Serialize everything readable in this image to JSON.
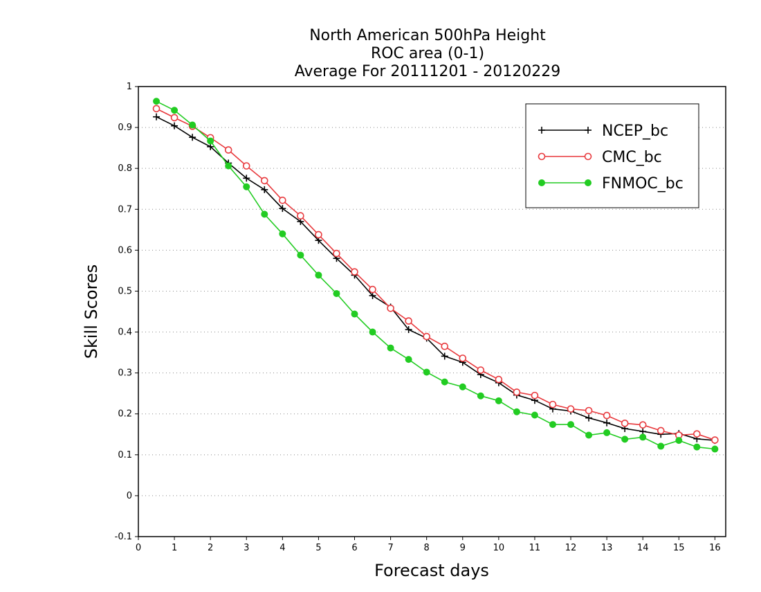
{
  "chart_data": {
    "type": "line",
    "title_lines": [
      "North American 500hPa Height",
      "ROC area (0-1)",
      "Average For 20111201 - 20120229"
    ],
    "xlabel": "Forecast days",
    "ylabel": "Skill Scores",
    "xlim": [
      0,
      16.3
    ],
    "ylim": [
      -0.1,
      1.0
    ],
    "xticks": [
      0,
      1,
      2,
      3,
      4,
      5,
      6,
      7,
      8,
      9,
      10,
      11,
      12,
      13,
      14,
      15,
      16
    ],
    "yticks": [
      -0.1,
      0,
      0.1,
      0.2,
      0.3,
      0.4,
      0.5,
      0.6,
      0.7,
      0.8,
      0.9,
      1
    ],
    "ytick_labels": [
      "-0.1",
      "0",
      "0.1",
      "0.2",
      "0.3",
      "0.4",
      "0.5",
      "0.6",
      "0.7",
      "0.8",
      "0.9",
      "1"
    ],
    "grid": "horizontal dotted",
    "legend_position": "top-right",
    "x": [
      0.5,
      1,
      1.5,
      2,
      2.5,
      3,
      3.5,
      4,
      4.5,
      5,
      5.5,
      6,
      6.5,
      7,
      7.5,
      8,
      8.5,
      9,
      9.5,
      10,
      10.5,
      11,
      11.5,
      12,
      12.5,
      13,
      13.5,
      14,
      14.5,
      15,
      15.5,
      16
    ],
    "series": [
      {
        "name": "NCEP_bc",
        "color": "#000000",
        "marker": "plus",
        "values": [
          0.926,
          0.904,
          0.876,
          0.853,
          0.813,
          0.776,
          0.748,
          0.702,
          0.67,
          0.624,
          0.58,
          0.539,
          0.489,
          0.461,
          0.406,
          0.385,
          0.341,
          0.326,
          0.296,
          0.276,
          0.246,
          0.233,
          0.212,
          0.207,
          0.19,
          0.178,
          0.164,
          0.157,
          0.15,
          0.152,
          0.139,
          0.135
        ]
      },
      {
        "name": "CMC_bc",
        "color": "#e8393d",
        "marker": "open-circle",
        "values": [
          0.946,
          0.924,
          0.903,
          0.875,
          0.845,
          0.806,
          0.77,
          0.722,
          0.684,
          0.638,
          0.592,
          0.547,
          0.504,
          0.458,
          0.427,
          0.389,
          0.365,
          0.336,
          0.307,
          0.284,
          0.253,
          0.245,
          0.223,
          0.212,
          0.208,
          0.196,
          0.177,
          0.173,
          0.159,
          0.148,
          0.151,
          0.136
        ]
      },
      {
        "name": "FNMOC_bc",
        "color": "#22cc22",
        "marker": "filled-circle",
        "values": [
          0.964,
          0.942,
          0.906,
          0.867,
          0.806,
          0.755,
          0.688,
          0.64,
          0.588,
          0.539,
          0.494,
          0.444,
          0.4,
          0.361,
          0.333,
          0.302,
          0.278,
          0.266,
          0.244,
          0.232,
          0.205,
          0.197,
          0.174,
          0.174,
          0.148,
          0.154,
          0.138,
          0.143,
          0.121,
          0.135,
          0.119,
          0.114
        ]
      }
    ]
  }
}
